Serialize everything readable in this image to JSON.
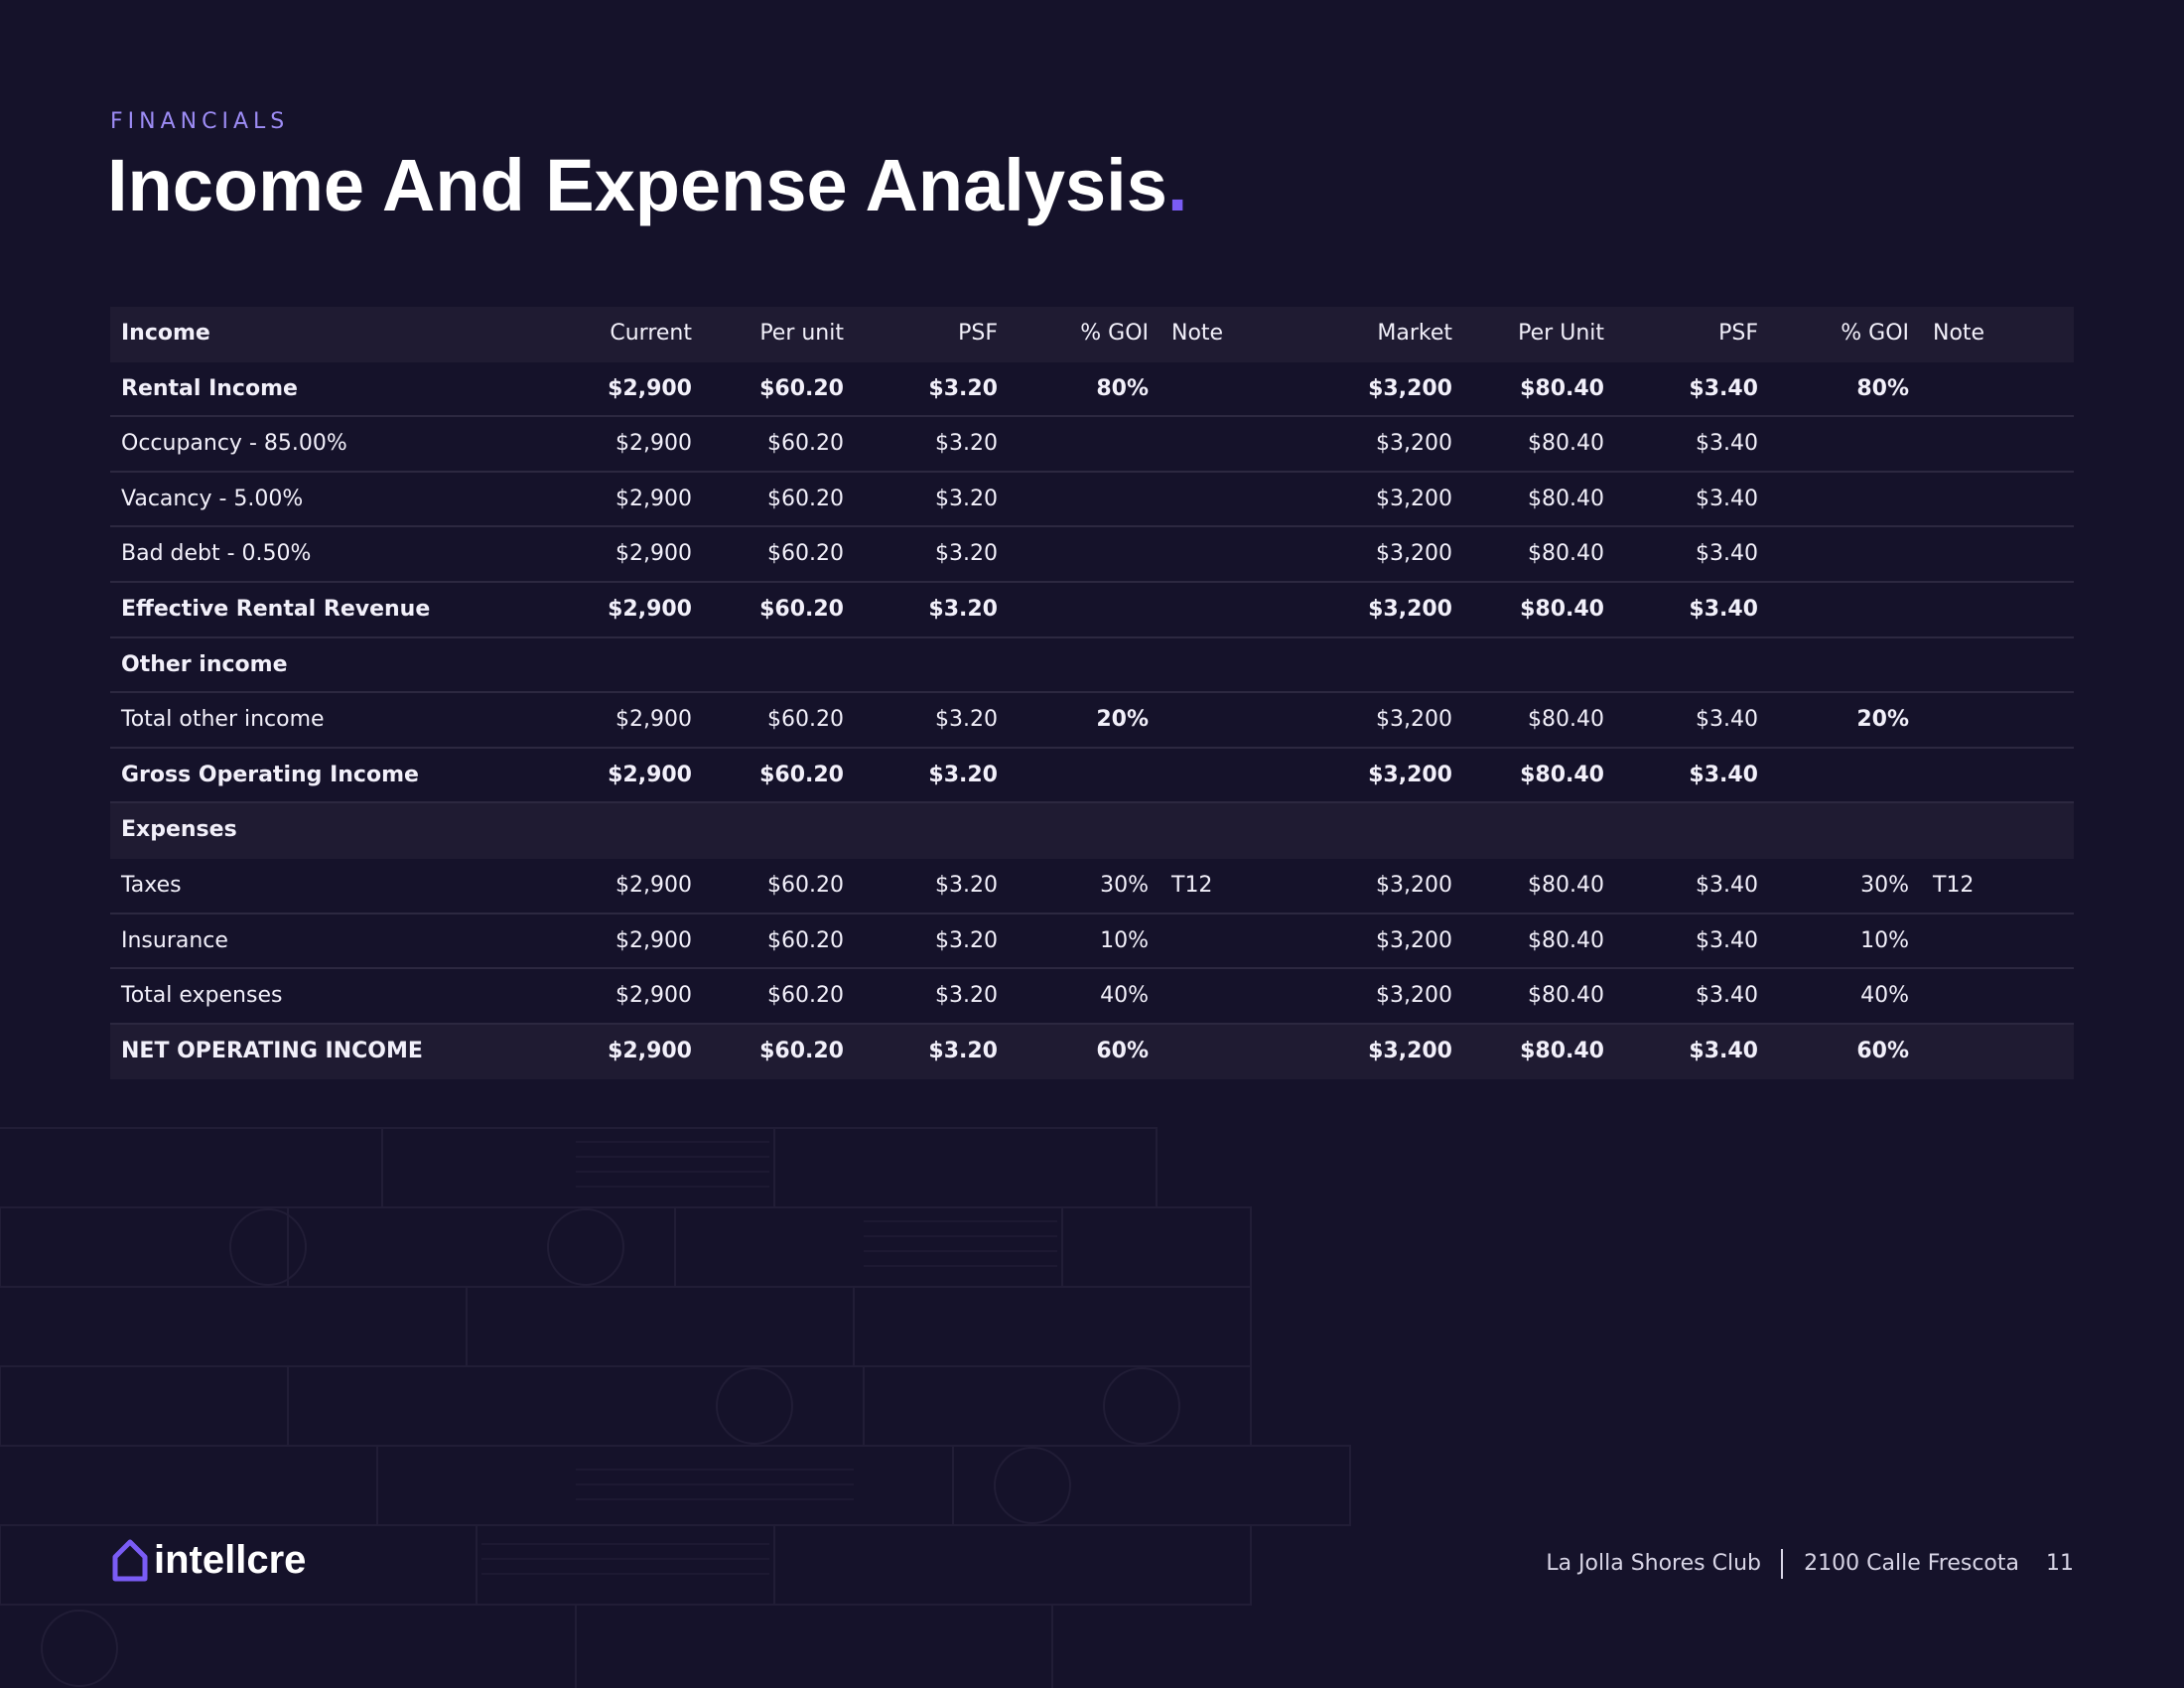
{
  "header": {
    "eyebrow": "FINANCIALS",
    "title": "Income And Expense Analysis",
    "title_mark": "."
  },
  "table": {
    "columns": [
      "Income",
      "Current",
      "Per unit",
      "PSF",
      "% GOI",
      "Note",
      "Market",
      "Per Unit",
      "PSF",
      "% GOI",
      "Note"
    ],
    "rows": [
      {
        "style": "bold",
        "cells": [
          "Rental Income",
          "$2,900",
          "$60.20",
          "$3.20",
          "80%",
          null,
          "$3,200",
          "$80.40",
          "$3.40",
          "80%",
          null
        ]
      },
      {
        "style": "normal",
        "cells": [
          "Occupancy - 85.00%",
          "$2,900",
          "$60.20",
          "$3.20",
          null,
          null,
          "$3,200",
          "$80.40",
          "$3.40",
          null,
          null
        ]
      },
      {
        "style": "normal",
        "cells": [
          "Vacancy - 5.00%",
          "$2,900",
          "$60.20",
          "$3.20",
          null,
          null,
          "$3,200",
          "$80.40",
          "$3.40",
          null,
          null
        ]
      },
      {
        "style": "normal",
        "cells": [
          "Bad debt - 0.50%",
          "$2,900",
          "$60.20",
          "$3.20",
          null,
          null,
          "$3,200",
          "$80.40",
          "$3.40",
          null,
          null
        ]
      },
      {
        "style": "bold",
        "cells": [
          "Effective Rental Revenue",
          "$2,900",
          "$60.20",
          "$3.20",
          null,
          null,
          "$3,200",
          "$80.40",
          "$3.40",
          null,
          null
        ]
      },
      {
        "style": "section",
        "cells": [
          "Other income",
          null,
          null,
          null,
          null,
          null,
          null,
          null,
          null,
          null,
          null
        ]
      },
      {
        "style": "normal",
        "cells": [
          "Total other income",
          "$2,900",
          "$60.20",
          "$3.20",
          "20%",
          null,
          "$3,200",
          "$80.40",
          "$3.40",
          "20%",
          null
        ],
        "bold_cols": [
          4,
          9
        ]
      },
      {
        "style": "bold",
        "cells": [
          "Gross Operating Income",
          "$2,900",
          "$60.20",
          "$3.20",
          null,
          null,
          "$3,200",
          "$80.40",
          "$3.40",
          null,
          null
        ]
      },
      {
        "style": "shaded-section",
        "cells": [
          "Expenses",
          null,
          null,
          null,
          null,
          null,
          null,
          null,
          null,
          null,
          null
        ]
      },
      {
        "style": "normal",
        "cells": [
          "Taxes",
          "$2,900",
          "$60.20",
          "$3.20",
          "30%",
          "T12",
          "$3,200",
          "$80.40",
          "$3.40",
          "30%",
          "T12"
        ]
      },
      {
        "style": "normal",
        "cells": [
          "Insurance",
          "$2,900",
          "$60.20",
          "$3.20",
          "10%",
          null,
          "$3,200",
          "$80.40",
          "$3.40",
          "10%",
          null
        ]
      },
      {
        "style": "normal",
        "cells": [
          "Total expenses",
          "$2,900",
          "$60.20",
          "$3.20",
          "40%",
          null,
          "$3,200",
          "$80.40",
          "$3.40",
          "40%",
          null
        ]
      },
      {
        "style": "shaded-bold",
        "cells": [
          "NET OPERATING INCOME",
          "$2,900",
          "$60.20",
          "$3.20",
          "60%",
          null,
          "$3,200",
          "$80.40",
          "$3.40",
          "60%",
          null
        ]
      }
    ]
  },
  "footer": {
    "logo": "intellcre",
    "property": "La Jolla Shores Club",
    "address": "2100 Calle Frescota",
    "page": "11"
  }
}
